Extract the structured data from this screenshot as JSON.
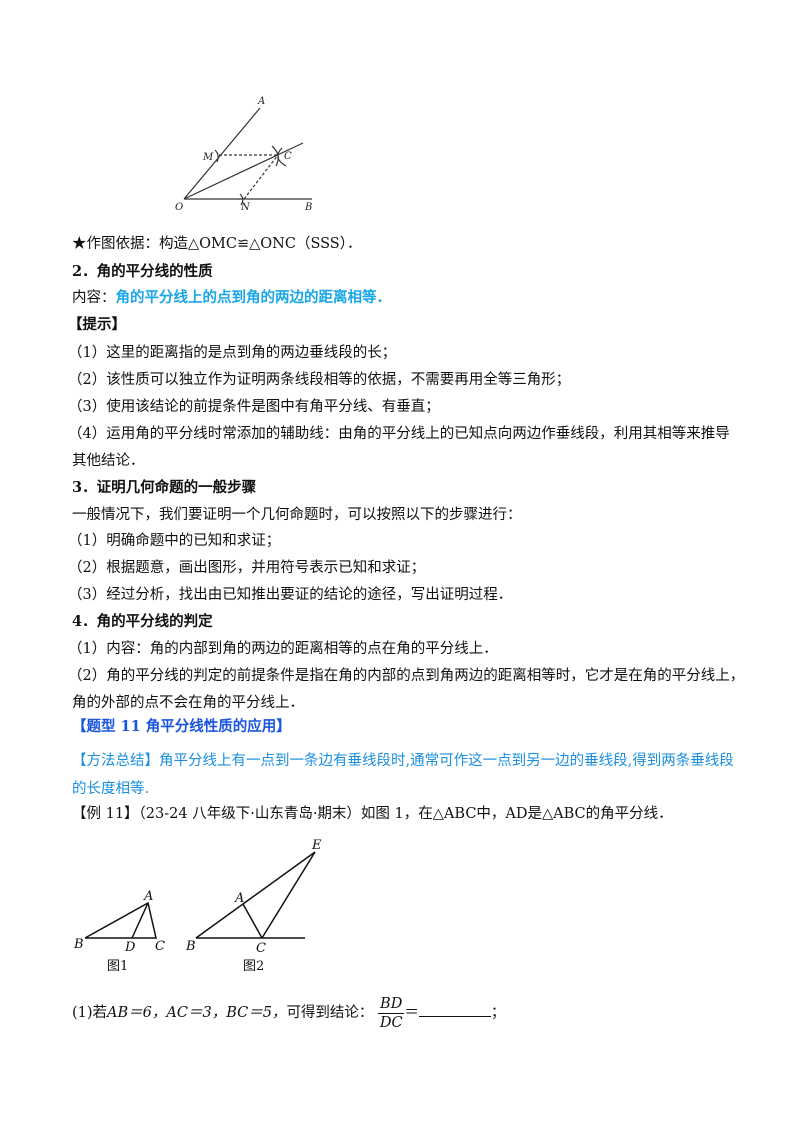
{
  "figure_top": {
    "labels": {
      "A": "A",
      "M": "M",
      "C": "C",
      "O": "O",
      "N": "N",
      "B": "B"
    }
  },
  "lines": {
    "basis": "★作图依据：构造△OMC≌△ONC（SSS）．",
    "s2_title": "2．角的平分线的性质",
    "s2_content_label": "内容：",
    "s2_content": "角的平分线上的点到角的两边的距离相等．",
    "tip_title": "【提示】",
    "tip1": "（1）这里的距离指的是点到角的两边垂线段的长；",
    "tip2": "（2）该性质可以独立作为证明两条线段相等的依据，不需要再用全等三角形；",
    "tip3": "（3）使用该结论的前提条件是图中有角平分线、有垂直；",
    "tip4a": "（4）运用角的平分线时常添加的辅助线：由角的平分线上的已知点向两边作垂线段，利用其相等来推导",
    "tip4b": "其他结论．",
    "s3_title": "3．证明几何命题的一般步骤",
    "s3_intro": "一般情况下，我们要证明一个几何命题时，可以按照以下的步骤进行：",
    "s3_1": "（1）明确命题中的已知和求证；",
    "s3_2": "（2）根据题意，画出图形，并用符号表示已知和求证；",
    "s3_3": "（3）经过分析，找出由已知推出要证的结论的途径，写出证明过程．",
    "s4_title": "4．角的平分线的判定",
    "s4_1": "（1）内容：角的内部到角的两边的距离相等的点在角的平分线上．",
    "s4_2a": "（2）角的平分线的判定的前提条件是指在角的内部的点到角两边的距离相等时，它才是在角的平分线上，",
    "s4_2b": "角的外部的点不会在角的平分线上．",
    "type_title": "【题型 11  角平分线性质的应用】",
    "method_a": "【方法总结】角平分线上有一点到一条边有垂线段时,通常可作这一点到另一边的垂线段,得到两条垂线段",
    "method_b": "的长度相等.",
    "example": "【例 11】（23-24 八年级下·山东青岛·期末）如图 1，在△ABC中，AD是△ABC的角平分线．"
  },
  "figures": {
    "fig1_caption": "图1",
    "fig2_caption": "图2",
    "fig1": {
      "A": "A",
      "B": "B",
      "D": "D",
      "C": "C"
    },
    "fig2": {
      "E": "E",
      "A": "A",
      "B": "B",
      "C": "C"
    }
  },
  "question": {
    "prefix": "(1)若",
    "cond": "AB＝6，AC＝3，BC＝5，",
    "mid": "可得到结论：",
    "num": "BD",
    "den": "DC",
    "eq": "＝",
    "end": "；"
  },
  "colors": {
    "cyan": "#1aa7e8",
    "blue": "#1a55e0",
    "method": "#1a8fe0"
  }
}
